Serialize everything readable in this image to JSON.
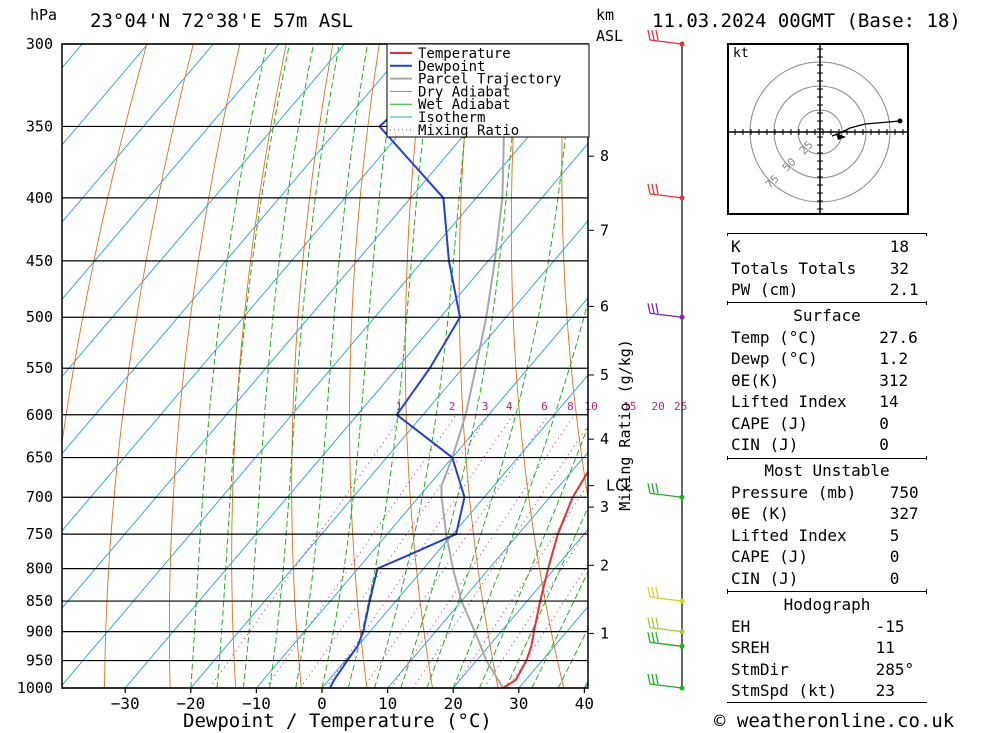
{
  "header": {
    "p_unit": "hPa",
    "location": "23°04'N  72°38'E  57m  ASL",
    "km_label": "km",
    "asl_label": "ASL",
    "datetime": "11.03.2024  00GMT  (Base: 18)"
  },
  "chart_data": {
    "type": "line",
    "xlabel": "Dewpoint / Temperature (°C)",
    "ylabel": "hPa",
    "x_ticks": [
      -30,
      -20,
      -10,
      0,
      10,
      20,
      30,
      40
    ],
    "pressure_levels": [
      300,
      350,
      400,
      450,
      500,
      550,
      600,
      650,
      700,
      750,
      800,
      850,
      900,
      950,
      1000
    ],
    "km_ticks": [
      {
        "label": "1",
        "p": 903
      },
      {
        "label": "2",
        "p": 795
      },
      {
        "label": "3",
        "p": 713
      },
      {
        "label": "4",
        "p": 628
      },
      {
        "label": "5",
        "p": 557
      },
      {
        "label": "6",
        "p": 490
      },
      {
        "label": "7",
        "p": 425
      },
      {
        "label": "8",
        "p": 370
      }
    ],
    "lcl": {
      "label": "LCL",
      "p": 685
    },
    "mixing_ratio_label": "Mixing Ratio (g/kg)",
    "mixing_ratio_ticks": [
      "1",
      "2",
      "3",
      "4",
      "6",
      "8",
      "10",
      "15",
      "20",
      "25"
    ],
    "mixing_ratio_values": [
      1,
      2,
      3,
      4,
      6,
      8,
      10,
      15,
      20,
      25
    ],
    "legend": [
      "Temperature",
      "Dewpoint",
      "Parcel Trajectory",
      "Dry Adiabat",
      "Wet Adiabat",
      "Isotherm",
      "Mixing Ratio"
    ],
    "colors": {
      "temperature": "#e83030",
      "dewpoint": "#2040d0",
      "parcel": "#a8a8a8",
      "dry_adiabat": "#e07020",
      "wet_adiabat": "#20b020",
      "isotherm": "#20a0e0",
      "mixing_ratio": "#c02080"
    },
    "series": [
      {
        "name": "Temperature",
        "points": [
          [
            1000,
            27.6
          ],
          [
            985,
            28.5
          ],
          [
            950,
            27.6
          ],
          [
            925,
            26.5
          ],
          [
            900,
            25
          ],
          [
            850,
            22
          ],
          [
            800,
            19
          ],
          [
            750,
            16
          ],
          [
            700,
            13.5
          ],
          [
            650,
            12
          ],
          [
            600,
            10.5
          ],
          [
            550,
            7
          ],
          [
            500,
            3
          ],
          [
            450,
            -2
          ],
          [
            400,
            -7
          ],
          [
            360,
            -11
          ]
        ]
      },
      {
        "name": "Dewpoint",
        "points": [
          [
            1000,
            1.2
          ],
          [
            985,
            0.8
          ],
          [
            950,
            0.3
          ],
          [
            925,
            0
          ],
          [
            900,
            -1
          ],
          [
            850,
            -4
          ],
          [
            800,
            -7
          ],
          [
            780,
            -4
          ],
          [
            750,
            0.5
          ],
          [
            700,
            -3
          ],
          [
            650,
            -10
          ],
          [
            600,
            -24
          ],
          [
            550,
            -25
          ],
          [
            500,
            -27
          ],
          [
            450,
            -36
          ],
          [
            400,
            -45
          ],
          [
            350,
            -64
          ],
          [
            300,
            -61
          ]
        ]
      },
      {
        "name": "Parcel Trajectory",
        "points": [
          [
            1000,
            27.6
          ],
          [
            950,
            21.5
          ],
          [
            900,
            16
          ],
          [
            850,
            10
          ],
          [
            800,
            4.5
          ],
          [
            750,
            -1
          ],
          [
            700,
            -6.5
          ],
          [
            685,
            -8
          ],
          [
            650,
            -10
          ],
          [
            600,
            -13.5
          ],
          [
            550,
            -18
          ],
          [
            500,
            -23
          ],
          [
            450,
            -29
          ],
          [
            400,
            -36
          ],
          [
            350,
            -45
          ],
          [
            300,
            -55
          ]
        ]
      }
    ],
    "wind_barbs": [
      {
        "p": 300,
        "color": "#e83030"
      },
      {
        "p": 400,
        "color": "#e83030"
      },
      {
        "p": 500,
        "color": "#8020c0"
      },
      {
        "p": 700,
        "color": "#20b020"
      },
      {
        "p": 850,
        "color": "#e0d020"
      },
      {
        "p": 900,
        "color": "#a0d020"
      },
      {
        "p": 925,
        "color": "#20b020"
      },
      {
        "p": 1000,
        "color": "#20b020"
      }
    ]
  },
  "hodograph": {
    "unit": "kt",
    "ring_labels": [
      "25",
      "50",
      "75"
    ]
  },
  "indices": {
    "top": [
      {
        "label": "K",
        "value": "18"
      },
      {
        "label": "Totals Totals",
        "value": "32"
      },
      {
        "label": "PW (cm)",
        "value": "2.1"
      }
    ],
    "surface_title": "Surface",
    "surface": [
      {
        "label": "Temp (°C)",
        "value": "27.6"
      },
      {
        "label": "Dewp (°C)",
        "value": "1.2"
      },
      {
        "label": "θE(K)",
        "value": "312"
      },
      {
        "label": "Lifted Index",
        "value": "14"
      },
      {
        "label": "CAPE (J)",
        "value": "0"
      },
      {
        "label": "CIN (J)",
        "value": "0"
      }
    ],
    "mu_title": "Most Unstable",
    "mu": [
      {
        "label": "Pressure (mb)",
        "value": "750"
      },
      {
        "label": "θE (K)",
        "value": "327"
      },
      {
        "label": "Lifted Index",
        "value": "5"
      },
      {
        "label": "CAPE (J)",
        "value": "0"
      },
      {
        "label": "CIN (J)",
        "value": "0"
      }
    ],
    "hodo_title": "Hodograph",
    "hodo": [
      {
        "label": "EH",
        "value": "-15"
      },
      {
        "label": "SREH",
        "value": "11"
      },
      {
        "label": "StmDir",
        "value": "285°"
      },
      {
        "label": "StmSpd (kt)",
        "value": "23"
      }
    ]
  },
  "footer": {
    "copyright": "© weatheronline.co.uk"
  }
}
